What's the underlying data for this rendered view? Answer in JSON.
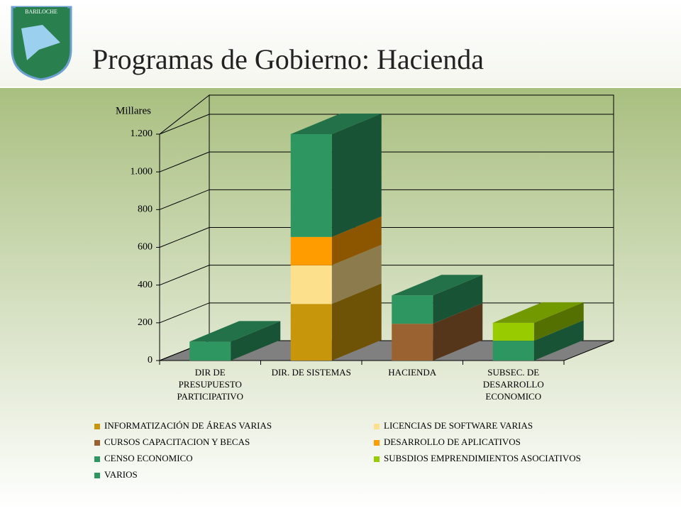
{
  "header": {
    "title": "Programas de Gobierno: Hacienda",
    "logo_text": "BARILOCHE"
  },
  "chart_data": {
    "type": "bar3d_stacked",
    "y_label": "Millares",
    "categories": [
      "DIR DE PRESUPUESTO PARTICIPATIVO",
      "DIR. DE SISTEMAS",
      "HACIENDA",
      "SUBSEC. DE DESARROLLO ECONOMICO"
    ],
    "series": [
      {
        "name": "INFORMATIZACIÓN DE ÁREAS VARIAS",
        "color": "#c8960a",
        "values": [
          null,
          300,
          null,
          null
        ]
      },
      {
        "name": "LICENCIAS DE SOFTWARE VARIAS",
        "color": "#fde08c",
        "values": [
          null,
          205,
          null,
          null
        ]
      },
      {
        "name": "CURSOS CAPACITACION Y BECAS",
        "color": "#9a6230",
        "values": [
          null,
          null,
          195,
          null
        ]
      },
      {
        "name": "DESARROLLO DE APLICATIVOS",
        "color": "#ff9c00",
        "values": [
          null,
          150,
          null,
          null
        ]
      },
      {
        "name": "CENSO ECONOMICO",
        "color": "#2e9660",
        "values": [
          null,
          null,
          null,
          105
        ]
      },
      {
        "name": "SUBSDIOS EMPRENDIMIENTOS ASOCIATIVOS",
        "color": "#99cc00",
        "values": [
          null,
          null,
          null,
          95
        ]
      },
      {
        "name": "VARIOS",
        "color": "#2e9660",
        "values": [
          100,
          545,
          150,
          null
        ]
      }
    ],
    "ylim": [
      0,
      1200
    ],
    "yticks": [
      0,
      200,
      400,
      600,
      800,
      {
        "value": 1000,
        "label": "1.000"
      },
      {
        "value": 1200,
        "label": "1.200"
      }
    ],
    "grid": true
  }
}
